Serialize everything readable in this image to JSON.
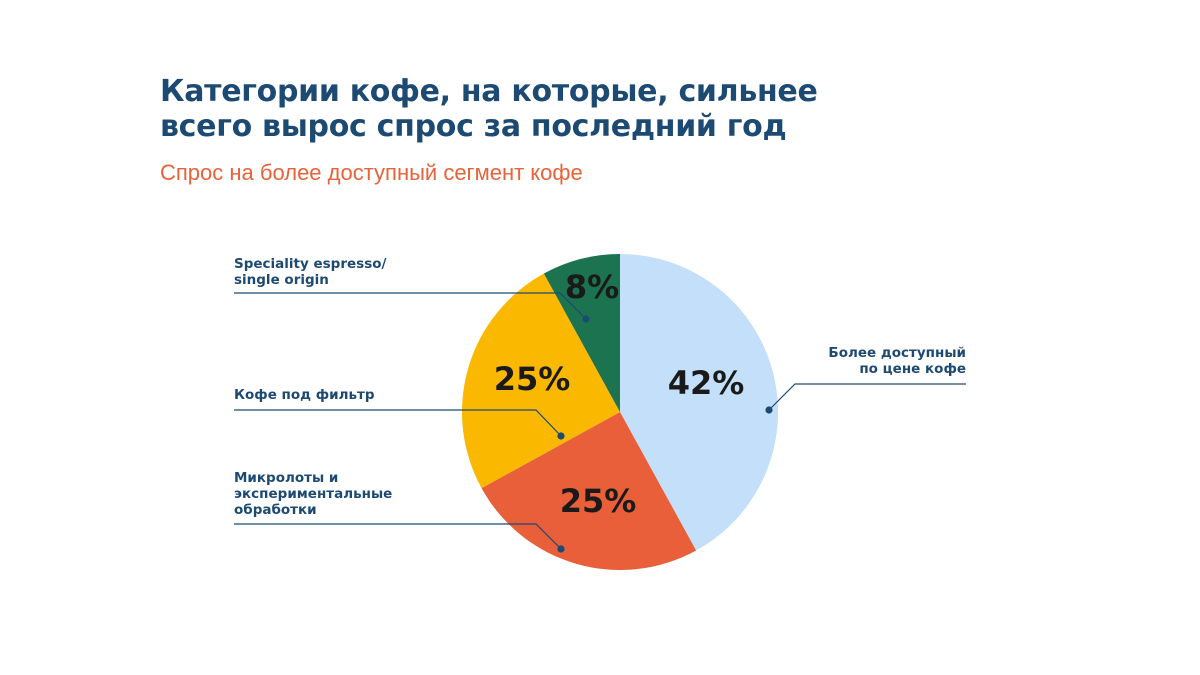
{
  "title_lines": [
    "Категории кофе, на которые, сильнее",
    "всего вырос спрос за последний год"
  ],
  "subtitle": "Спрос на более доступный сегмент кофе",
  "colors": {
    "title": "#1d4a72",
    "subtitle": "#e8623a",
    "callout": "#1d4a72"
  },
  "chart_data": {
    "type": "pie",
    "title": "Категории кофе, на которые, сильнее всего вырос спрос за последний год",
    "subtitle": "Спрос на более доступный сегмент кофе",
    "slices": [
      {
        "label_lines": [
          "Более доступный",
          "по цене кофе"
        ],
        "value": 42,
        "display": "42%",
        "color": "#c4dff9"
      },
      {
        "label_lines": [
          "Микролоты и",
          "экспериментальные",
          "обработки"
        ],
        "value": 25,
        "display": "25%",
        "color": "#e95f39"
      },
      {
        "label_lines": [
          "Кофе под фильтр"
        ],
        "value": 25,
        "display": "25%",
        "color": "#fbb800"
      },
      {
        "label_lines": [
          "Speciality espresso/",
          "single origin"
        ],
        "value": 8,
        "display": "8%",
        "color": "#1c7350"
      }
    ],
    "start_angle": "12 o'clock",
    "direction": "clockwise",
    "legend": "callouts"
  }
}
